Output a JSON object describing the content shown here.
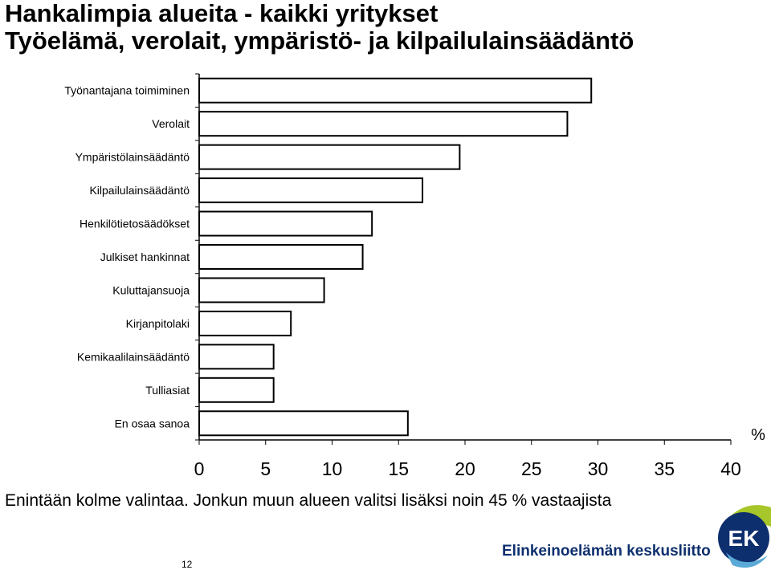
{
  "header": {
    "title": "Hankalimpia alueita - kaikki yritykset",
    "subtitle": "Työelämä, verolait, ympäristö- ja kilpailulainsäädäntö"
  },
  "chart_data": {
    "type": "bar",
    "orientation": "horizontal",
    "categories": [
      "Työnantajana toimiminen",
      "Verolait",
      "Ympäristölainsäädäntö",
      "Kilpailulainsäädäntö",
      "Henkilötietosäädökset",
      "Julkiset hankinnat",
      "Kuluttajansuoja",
      "Kirjanpitolaki",
      "Kemikaalilainsäädäntö",
      "Tulliasiat",
      "En osaa sanoa"
    ],
    "values": [
      29.5,
      27.7,
      19.6,
      16.8,
      13,
      12.3,
      9.4,
      6.9,
      5.6,
      5.6,
      15.7
    ],
    "xlim": [
      0,
      40
    ],
    "xticks": [
      "0",
      "5",
      "10",
      "15",
      "20",
      "25",
      "30",
      "35",
      "40"
    ],
    "xlabel": "%",
    "grid": false,
    "bar_color": "#ffffff",
    "bar_edge_color": "#000000"
  },
  "footer": {
    "note": "Enintään kolme valintaa. Jonkun muun alueen valitsi lisäksi noin 45 % vastaajista",
    "page_number": "12"
  },
  "logo": {
    "organization": "Elinkeinoelämän keskusliitto",
    "mark": "EK",
    "colors": {
      "lime": "#a6c629",
      "navy": "#0e2f6e",
      "light_blue": "#5aa9d6"
    }
  }
}
